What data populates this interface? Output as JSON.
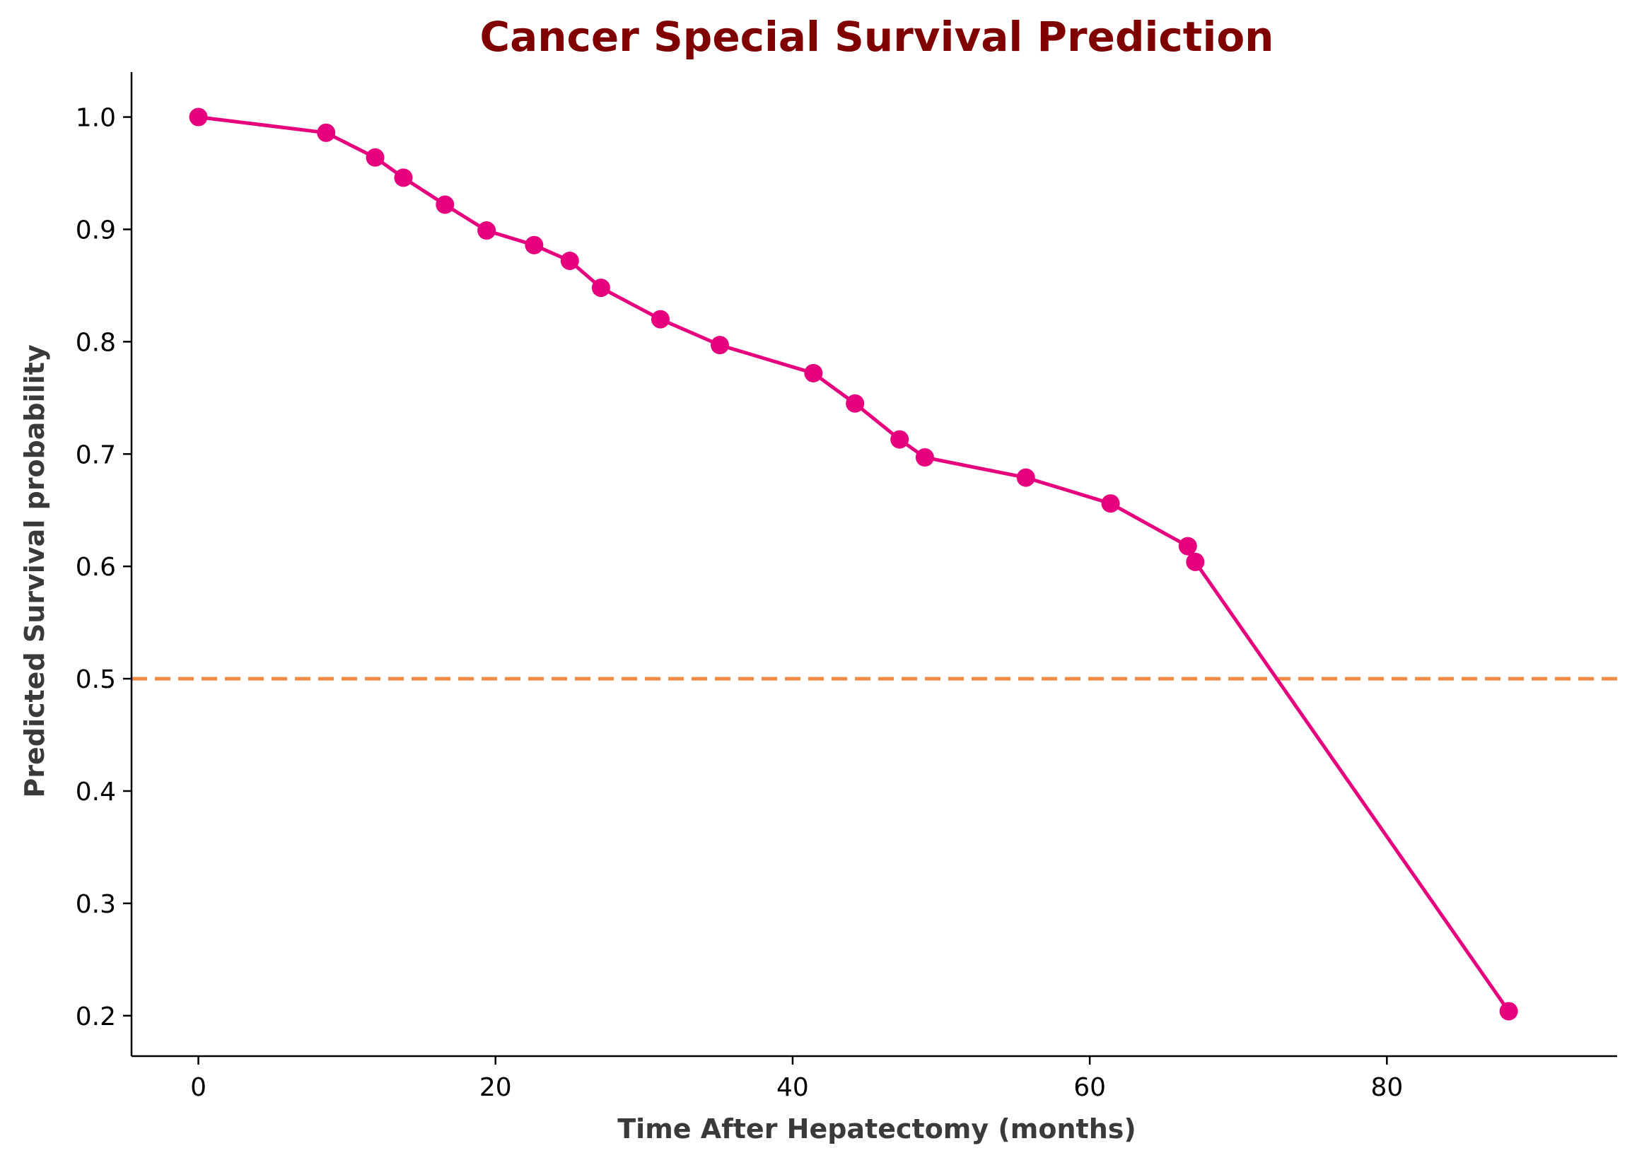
{
  "chart_data": {
    "type": "line",
    "title": "Cancer Special Survival Prediction",
    "xlabel": "Time After Hepatectomy (months)",
    "ylabel": "Predicted Survival probability",
    "xlim": [
      -4.5,
      95.5
    ],
    "ylim": [
      0.164,
      1.04
    ],
    "x_ticks": [
      0,
      20,
      40,
      60,
      80
    ],
    "y_ticks": [
      0.2,
      0.3,
      0.4,
      0.5,
      0.6,
      0.7,
      0.8,
      0.9,
      1.0
    ],
    "x_tick_labels": [
      "0",
      "20",
      "40",
      "60",
      "80"
    ],
    "y_tick_labels": [
      "0.2",
      "0.3",
      "0.4",
      "0.5",
      "0.6",
      "0.7",
      "0.8",
      "0.9",
      "1.0"
    ],
    "grid": false,
    "series": [
      {
        "color": "#e6007e",
        "x": [
          0,
          8.6,
          11.9,
          13.8,
          16.6,
          19.4,
          22.6,
          25.0,
          27.1,
          31.1,
          35.1,
          41.4,
          44.2,
          47.2,
          48.9,
          55.7,
          61.4,
          66.6,
          67.1,
          88.2
        ],
        "y": [
          1.0,
          0.986,
          0.964,
          0.946,
          0.922,
          0.899,
          0.886,
          0.872,
          0.848,
          0.82,
          0.797,
          0.772,
          0.745,
          0.713,
          0.697,
          0.679,
          0.656,
          0.618,
          0.604,
          0.204
        ]
      }
    ],
    "reference_lines": [
      {
        "axis": "y",
        "value": 0.5,
        "color": "#f28a45",
        "style": "dashed"
      }
    ],
    "colors": {
      "title": "#800000",
      "axis_label": "#3a3a3a",
      "line": "#e6007e",
      "reference": "#f28a45",
      "axes": "#000000"
    }
  }
}
